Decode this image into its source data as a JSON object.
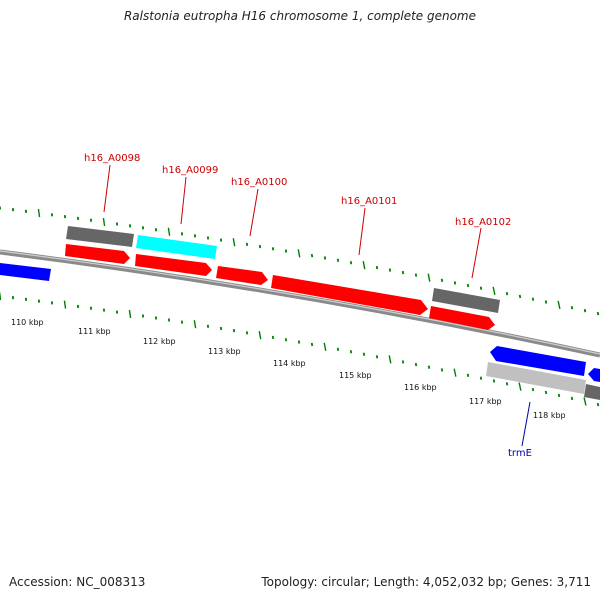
{
  "title": "Ralstonia eutropha H16 chromosome 1, complete genome",
  "footer": {
    "accession": "Accession: NC_008313",
    "topology": "Topology: circular; Length: 4,052,032 bp; Genes: 3,711"
  },
  "colors": {
    "cds_forward": "#ff0000",
    "cds_reverse": "#0000ff",
    "cds_highlight": "#00ffff",
    "feature_dark": "#666666",
    "feature_light": "#c0c0c0",
    "backbone": "#888888",
    "tick": "#008000",
    "label_red": "#cc0000",
    "label_blue": "#0000aa"
  },
  "scale_labels": [
    "110 kbp",
    "111 kbp",
    "112 kbp",
    "113 kbp",
    "114 kbp",
    "115 kbp",
    "116 kbp",
    "117 kbp",
    "118 kbp"
  ],
  "gene_labels": [
    {
      "text": "h16_A0098",
      "strand": "forward"
    },
    {
      "text": "h16_A0099",
      "strand": "forward"
    },
    {
      "text": "h16_A0100",
      "strand": "forward"
    },
    {
      "text": "h16_A0101",
      "strand": "forward"
    },
    {
      "text": "h16_A0102",
      "strand": "forward"
    },
    {
      "text": "trmE",
      "strand": "reverse"
    }
  ]
}
